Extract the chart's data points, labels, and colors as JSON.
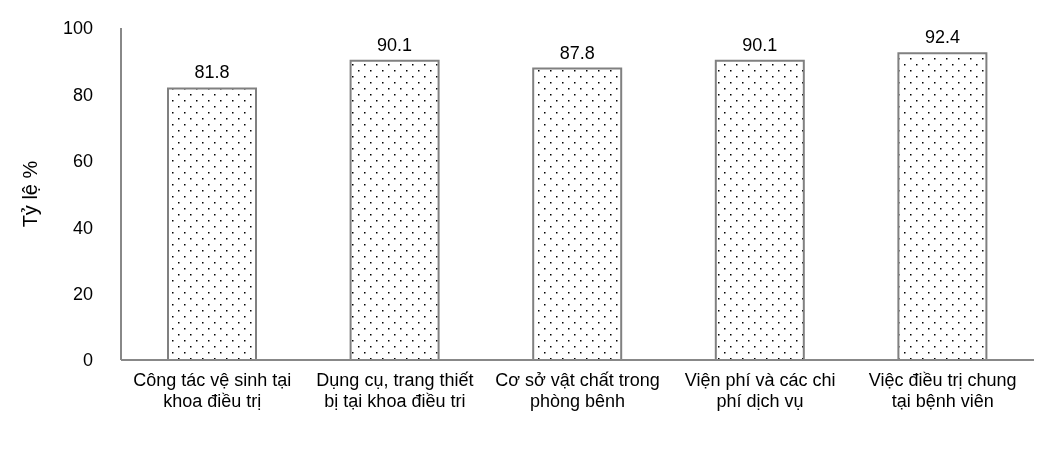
{
  "chart_data": {
    "type": "bar",
    "ylabel": "Tỷ lệ %",
    "categories": [
      "Công tác vệ sinh tại khoa điều trị",
      "Dụng cụ, trang thiết bị tại khoa điều tri",
      "Cơ sở vật chất trong phòng bênh",
      "Viện phí và các chi phí dịch vụ",
      "Việc điều trị chung tại bệnh viên"
    ],
    "values": [
      81.8,
      90.1,
      87.8,
      90.1,
      92.4
    ],
    "color": "#808080",
    "ylim": [
      0,
      100
    ],
    "yticks": [
      0,
      20,
      40,
      60,
      80,
      100
    ],
    "grid": false,
    "legend": false,
    "data_labels": true
  }
}
